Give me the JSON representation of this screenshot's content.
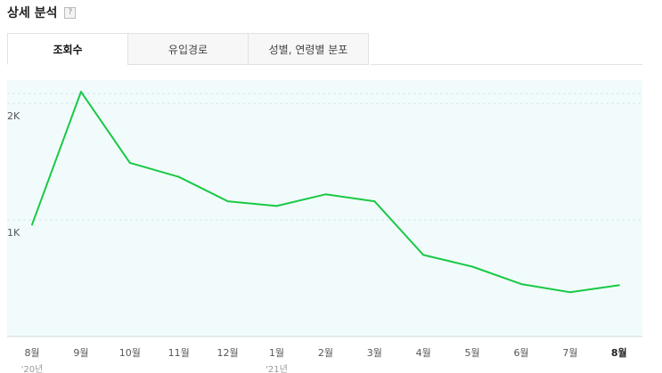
{
  "header": {
    "title": "상세 분석",
    "help": "?"
  },
  "tabs": [
    {
      "label": "조회수",
      "active": true
    },
    {
      "label": "유입경로",
      "active": false
    },
    {
      "label": "성별, 연령별 분포",
      "active": false
    }
  ],
  "chart_data": {
    "type": "line",
    "categories": [
      "8월",
      "9월",
      "10월",
      "11월",
      "12월",
      "1월",
      "2월",
      "3월",
      "4월",
      "5월",
      "6월",
      "7월",
      "8월"
    ],
    "year_labels": [
      {
        "index": 0,
        "label": "'20년"
      },
      {
        "index": 5,
        "label": "'21년"
      }
    ],
    "current_index": 12,
    "values": [
      960,
      2100,
      1490,
      1370,
      1160,
      1120,
      1220,
      1160,
      700,
      600,
      450,
      380,
      440
    ],
    "y_ticks": [
      {
        "value": 1000,
        "label": "1K"
      },
      {
        "value": 2000,
        "label": "2K"
      }
    ],
    "ylim": [
      0,
      2200
    ],
    "line_color": "#19c945",
    "fill_color": "#f1fbfc",
    "grid": true
  }
}
